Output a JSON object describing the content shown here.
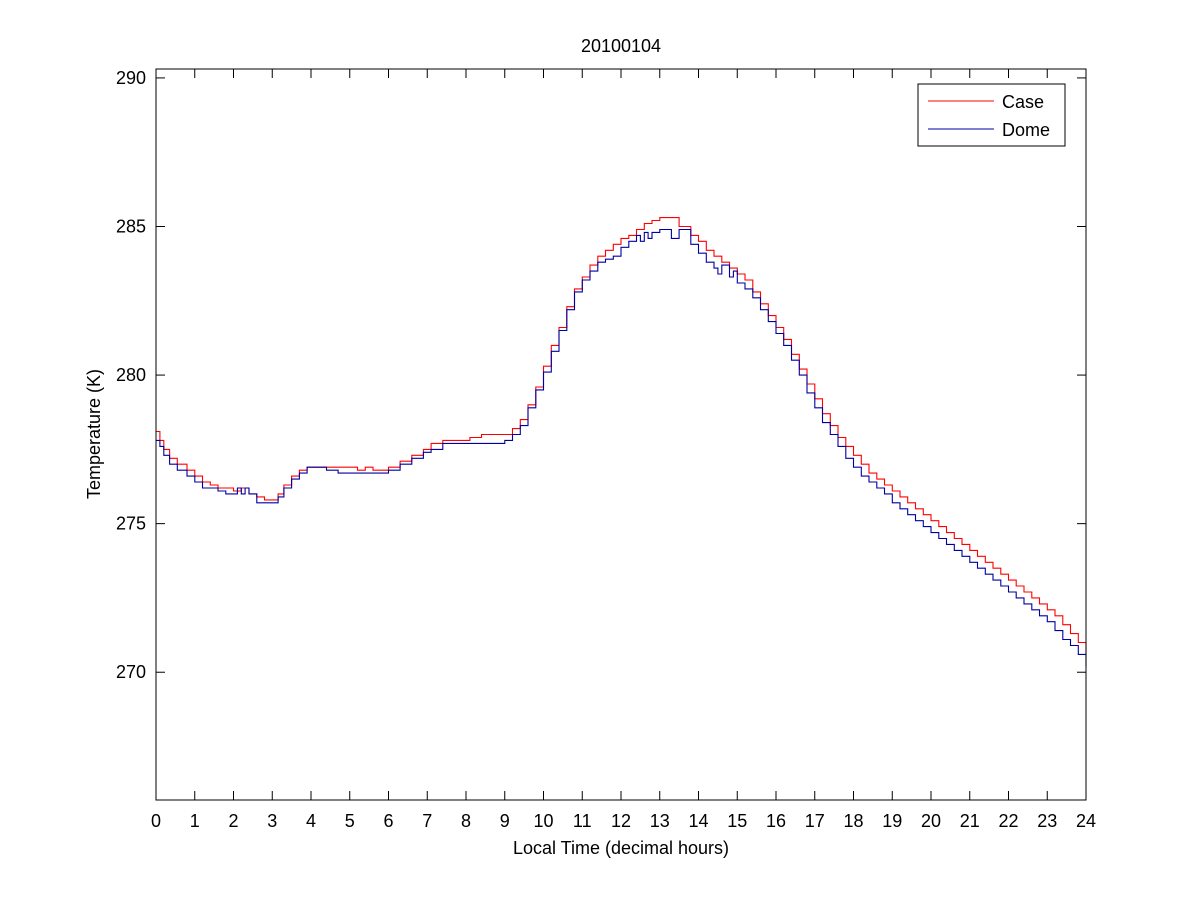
{
  "chart_data": {
    "type": "line",
    "title": "20100104",
    "xlabel": "Local Time (decimal hours)",
    "ylabel": "Temperature (K)",
    "xlim": [
      0,
      24
    ],
    "ylim": [
      265.7,
      290.3
    ],
    "xticks": [
      0,
      1,
      2,
      3,
      4,
      5,
      6,
      7,
      8,
      9,
      10,
      11,
      12,
      13,
      14,
      15,
      16,
      17,
      18,
      19,
      20,
      21,
      22,
      23,
      24
    ],
    "yticks": [
      270,
      275,
      280,
      285,
      290
    ],
    "grid": false,
    "legend": {
      "position": "top-right"
    },
    "series": [
      {
        "name": "Case",
        "color": "#ff0000",
        "x": [
          0.0,
          0.1,
          0.2,
          0.35,
          0.55,
          0.8,
          1.0,
          1.2,
          1.4,
          1.6,
          1.8,
          2.0,
          2.2,
          2.4,
          2.6,
          2.8,
          3.0,
          3.15,
          3.3,
          3.5,
          3.7,
          3.9,
          4.1,
          4.4,
          4.7,
          5.0,
          5.2,
          5.4,
          5.6,
          5.8,
          6.0,
          6.3,
          6.6,
          6.9,
          7.1,
          7.4,
          7.8,
          8.1,
          8.4,
          8.7,
          9.0,
          9.2,
          9.4,
          9.6,
          9.8,
          10.0,
          10.2,
          10.4,
          10.6,
          10.8,
          11.0,
          11.2,
          11.4,
          11.6,
          11.8,
          12.0,
          12.2,
          12.4,
          12.6,
          12.8,
          13.0,
          13.2,
          13.5,
          13.8,
          14.0,
          14.2,
          14.4,
          14.6,
          14.8,
          15.0,
          15.2,
          15.4,
          15.6,
          15.8,
          16.0,
          16.2,
          16.4,
          16.6,
          16.8,
          17.0,
          17.2,
          17.4,
          17.6,
          17.8,
          18.0,
          18.2,
          18.4,
          18.6,
          18.8,
          19.0,
          19.2,
          19.4,
          19.6,
          19.8,
          20.0,
          20.2,
          20.4,
          20.6,
          20.8,
          21.0,
          21.2,
          21.4,
          21.6,
          21.8,
          22.0,
          22.2,
          22.4,
          22.6,
          22.8,
          23.0,
          23.2,
          23.4,
          23.6,
          23.8,
          24.0
        ],
        "y": [
          278.1,
          277.8,
          277.5,
          277.2,
          277.0,
          276.8,
          276.6,
          276.4,
          276.3,
          276.2,
          276.2,
          276.1,
          276.2,
          276.0,
          275.9,
          275.8,
          275.8,
          276.0,
          276.3,
          276.6,
          276.8,
          276.9,
          276.9,
          276.9,
          276.9,
          276.9,
          276.8,
          276.9,
          276.8,
          276.8,
          276.9,
          277.1,
          277.3,
          277.5,
          277.7,
          277.8,
          277.8,
          277.9,
          278.0,
          278.0,
          278.0,
          278.2,
          278.5,
          279.0,
          279.6,
          280.3,
          281.0,
          281.6,
          282.3,
          282.9,
          283.3,
          283.7,
          284.0,
          284.2,
          284.4,
          284.6,
          284.7,
          284.9,
          285.1,
          285.2,
          285.3,
          285.3,
          285.0,
          284.7,
          284.5,
          284.2,
          284.0,
          283.8,
          283.6,
          283.4,
          283.2,
          282.8,
          282.4,
          282.0,
          281.6,
          281.2,
          280.7,
          280.2,
          279.7,
          279.2,
          278.7,
          278.3,
          277.9,
          277.6,
          277.3,
          277.0,
          276.7,
          276.5,
          276.3,
          276.1,
          275.9,
          275.7,
          275.5,
          275.3,
          275.1,
          274.9,
          274.7,
          274.5,
          274.3,
          274.1,
          273.9,
          273.7,
          273.5,
          273.3,
          273.1,
          272.9,
          272.7,
          272.5,
          272.3,
          272.1,
          271.9,
          271.6,
          271.3,
          271.0,
          270.6
        ]
      },
      {
        "name": "Dome",
        "color": "#0000a0",
        "x": [
          0.0,
          0.1,
          0.2,
          0.35,
          0.55,
          0.8,
          1.0,
          1.2,
          1.4,
          1.6,
          1.8,
          2.0,
          2.1,
          2.2,
          2.3,
          2.4,
          2.6,
          2.8,
          3.0,
          3.15,
          3.3,
          3.5,
          3.7,
          3.9,
          4.1,
          4.4,
          4.7,
          5.0,
          5.2,
          5.4,
          5.6,
          5.8,
          6.0,
          6.3,
          6.6,
          6.9,
          7.1,
          7.4,
          7.8,
          8.1,
          8.4,
          8.7,
          9.0,
          9.2,
          9.4,
          9.6,
          9.8,
          10.0,
          10.2,
          10.4,
          10.6,
          10.8,
          11.0,
          11.2,
          11.4,
          11.6,
          11.8,
          12.0,
          12.2,
          12.4,
          12.5,
          12.6,
          12.7,
          12.8,
          13.0,
          13.2,
          13.3,
          13.5,
          13.8,
          14.0,
          14.2,
          14.4,
          14.5,
          14.6,
          14.8,
          14.9,
          15.0,
          15.2,
          15.4,
          15.6,
          15.8,
          16.0,
          16.2,
          16.4,
          16.6,
          16.8,
          17.0,
          17.2,
          17.4,
          17.6,
          17.8,
          18.0,
          18.2,
          18.4,
          18.6,
          18.8,
          19.0,
          19.2,
          19.4,
          19.6,
          19.8,
          20.0,
          20.2,
          20.4,
          20.6,
          20.8,
          21.0,
          21.2,
          21.4,
          21.6,
          21.8,
          22.0,
          22.2,
          22.4,
          22.6,
          22.8,
          23.0,
          23.2,
          23.4,
          23.6,
          23.8,
          24.0
        ],
        "y": [
          277.8,
          277.6,
          277.3,
          277.0,
          276.8,
          276.6,
          276.4,
          276.2,
          276.2,
          276.1,
          276.0,
          276.0,
          276.2,
          276.0,
          276.2,
          276.0,
          275.7,
          275.7,
          275.7,
          275.9,
          276.2,
          276.5,
          276.7,
          276.9,
          276.9,
          276.8,
          276.7,
          276.7,
          276.7,
          276.7,
          276.7,
          276.7,
          276.8,
          277.0,
          277.2,
          277.4,
          277.5,
          277.7,
          277.7,
          277.7,
          277.7,
          277.7,
          277.8,
          278.0,
          278.3,
          278.9,
          279.5,
          280.1,
          280.8,
          281.5,
          282.2,
          282.8,
          283.2,
          283.5,
          283.8,
          283.9,
          284.0,
          284.3,
          284.5,
          284.7,
          284.5,
          284.8,
          284.6,
          284.8,
          284.9,
          284.9,
          284.6,
          284.9,
          284.4,
          284.1,
          283.8,
          283.6,
          283.4,
          283.7,
          283.3,
          283.5,
          283.1,
          282.9,
          282.6,
          282.2,
          281.8,
          281.4,
          281.0,
          280.5,
          280.0,
          279.4,
          278.9,
          278.4,
          278.0,
          277.6,
          277.2,
          276.9,
          276.6,
          276.4,
          276.2,
          276.0,
          275.7,
          275.5,
          275.3,
          275.1,
          274.9,
          274.7,
          274.5,
          274.3,
          274.1,
          273.9,
          273.7,
          273.5,
          273.3,
          273.1,
          272.9,
          272.7,
          272.5,
          272.3,
          272.1,
          271.9,
          271.7,
          271.4,
          271.1,
          270.9,
          270.6,
          270.2
        ]
      }
    ]
  }
}
